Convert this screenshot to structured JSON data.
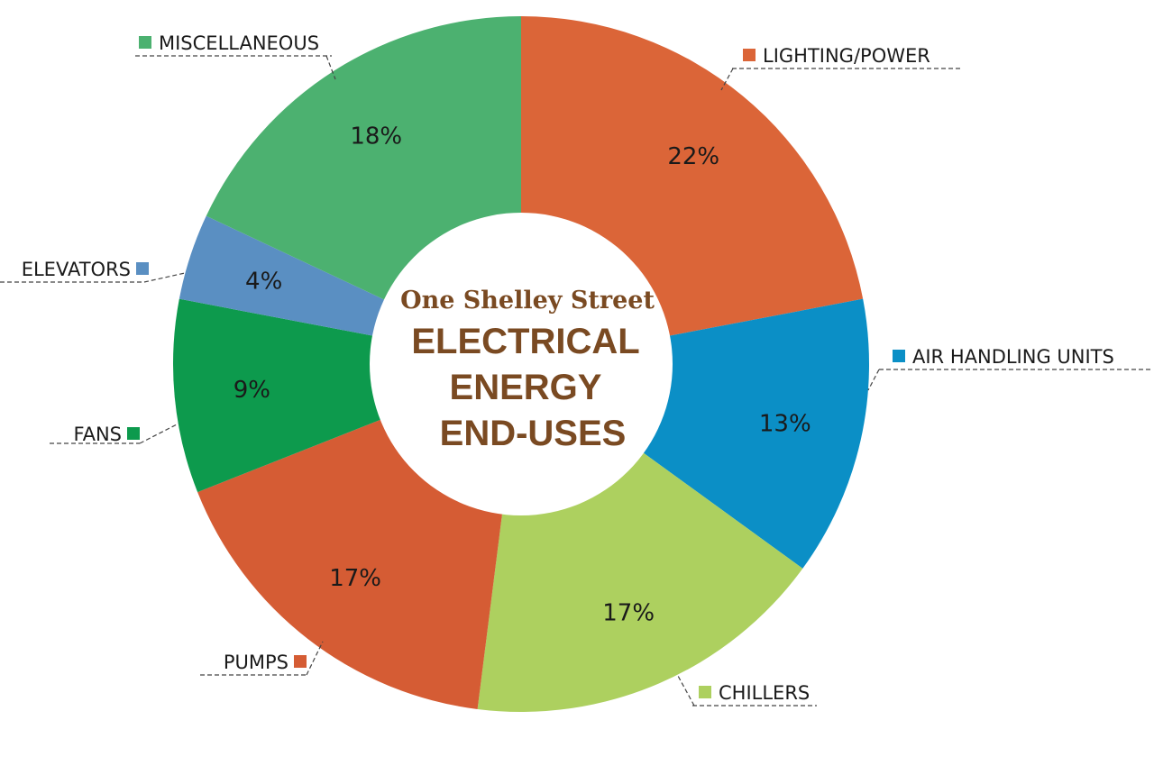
{
  "chart_data": {
    "type": "pie",
    "variant": "donut",
    "subtitle": "One Shelley Street",
    "title_lines": [
      "ELECTRICAL",
      "ENERGY",
      "END-USES"
    ],
    "slices": [
      {
        "name": "LIGHTING/POWER",
        "value": 22,
        "label": "22%",
        "color": "#db6538"
      },
      {
        "name": "AIR HANDLING UNITS",
        "value": 13,
        "label": "13%",
        "color": "#0b8fc6"
      },
      {
        "name": "CHILLERS",
        "value": 17,
        "label": "17%",
        "color": "#add05f"
      },
      {
        "name": "PUMPS",
        "value": 17,
        "label": "17%",
        "color": "#d55c34"
      },
      {
        "name": "FANS",
        "value": 9,
        "label": "9%",
        "color": "#0d9a4d"
      },
      {
        "name": "ELEVATORS",
        "value": 4,
        "label": "4%",
        "color": "#5a8fc2"
      },
      {
        "name": "MISCELLANEOUS",
        "value": 18,
        "label": "18%",
        "color": "#4cb170"
      }
    ],
    "start": "12 o'clock",
    "direction": "clockwise",
    "legend": "callouts around the ring"
  }
}
